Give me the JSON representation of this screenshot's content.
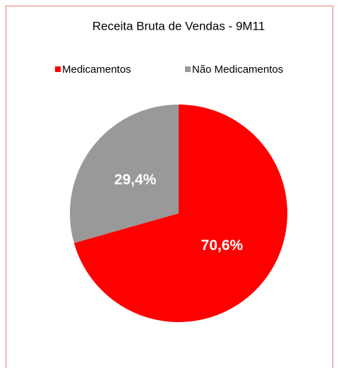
{
  "chart_data": {
    "type": "pie",
    "title": "Receita Bruta de Vendas - 9M11",
    "categories": [
      "Medicamentos",
      "Não Medicamentos"
    ],
    "values": [
      70.6,
      29.4
    ],
    "value_labels": [
      "70,6%",
      "29,4%"
    ],
    "colors": [
      "#ff0000",
      "#999999"
    ],
    "legend": "top"
  }
}
